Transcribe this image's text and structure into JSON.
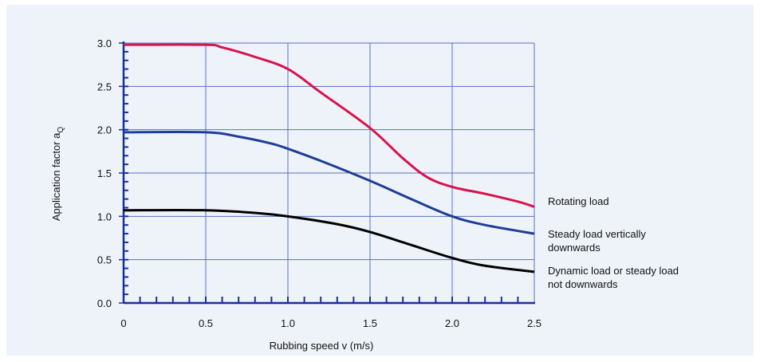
{
  "chart_data": {
    "type": "line",
    "xlabel": "Rubbing speed v (m/s)",
    "ylabel": "Application factor a",
    "ylabel_subscript": "Q",
    "xlim": [
      0,
      2.5
    ],
    "ylim": [
      0,
      3.0
    ],
    "x_ticks": [
      "0",
      "0.5",
      "1.0",
      "1.5",
      "2.0",
      "2.5"
    ],
    "y_ticks": [
      "0.0",
      "0.5",
      "1.0",
      "1.5",
      "2.0",
      "2.5",
      "3.0"
    ],
    "grid": true,
    "colors": {
      "grid": "#5a6fc0",
      "axis": "#1a2f9c",
      "background": "#eef3fa"
    },
    "series": [
      {
        "name": "Rotating load",
        "label_lines": [
          "Rotating load"
        ],
        "color": "#d8124a",
        "points": [
          [
            0,
            2.98
          ],
          [
            0.5,
            2.98
          ],
          [
            0.6,
            2.95
          ],
          [
            0.8,
            2.84
          ],
          [
            1.0,
            2.7
          ],
          [
            1.2,
            2.43
          ],
          [
            1.5,
            2.02
          ],
          [
            1.7,
            1.67
          ],
          [
            1.85,
            1.45
          ],
          [
            2.0,
            1.34
          ],
          [
            2.2,
            1.26
          ],
          [
            2.4,
            1.17
          ],
          [
            2.5,
            1.11
          ]
        ]
      },
      {
        "name": "Steady load vertically downwards",
        "label_lines": [
          "Steady load vertically",
          "downwards"
        ],
        "color": "#1e3d96",
        "points": [
          [
            0,
            1.97
          ],
          [
            0.5,
            1.97
          ],
          [
            0.7,
            1.92
          ],
          [
            0.9,
            1.84
          ],
          [
            1.0,
            1.78
          ],
          [
            1.2,
            1.64
          ],
          [
            1.5,
            1.41
          ],
          [
            1.75,
            1.2
          ],
          [
            2.0,
            1.0
          ],
          [
            2.2,
            0.9
          ],
          [
            2.5,
            0.8
          ]
        ]
      },
      {
        "name": "Dynamic load or steady load not downwards",
        "label_lines": [
          "Dynamic load or steady load",
          "not downwards"
        ],
        "color": "#000000",
        "points": [
          [
            0,
            1.07
          ],
          [
            0.5,
            1.07
          ],
          [
            0.8,
            1.04
          ],
          [
            1.0,
            1.0
          ],
          [
            1.3,
            0.91
          ],
          [
            1.5,
            0.82
          ],
          [
            1.75,
            0.67
          ],
          [
            2.0,
            0.52
          ],
          [
            2.2,
            0.43
          ],
          [
            2.5,
            0.36
          ]
        ]
      }
    ]
  }
}
